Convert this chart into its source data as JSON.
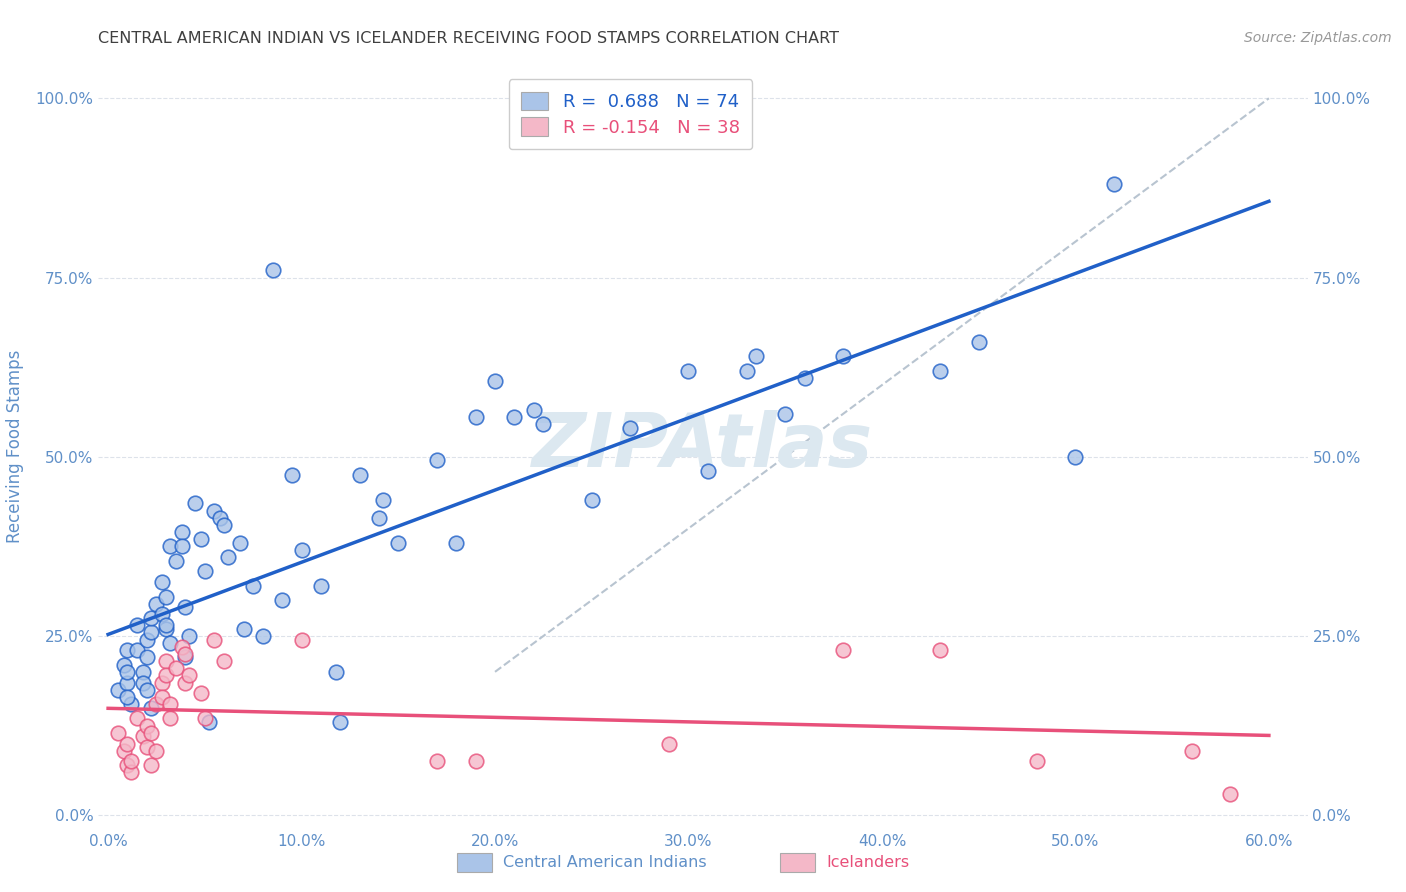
{
  "title": "CENTRAL AMERICAN INDIAN VS ICELANDER RECEIVING FOOD STAMPS CORRELATION CHART",
  "source": "Source: ZipAtlas.com",
  "ylabel": "Receiving Food Stamps",
  "xlabel_ticks": [
    "0.0%",
    "10.0%",
    "20.0%",
    "30.0%",
    "40.0%",
    "50.0%",
    "60.0%"
  ],
  "xlabel_vals": [
    0.0,
    0.1,
    0.2,
    0.3,
    0.4,
    0.5,
    0.6
  ],
  "ylabel_ticks": [
    "0.0%",
    "25.0%",
    "50.0%",
    "75.0%",
    "100.0%"
  ],
  "ylabel_vals": [
    0.0,
    0.25,
    0.5,
    0.75,
    1.0
  ],
  "xlim": [
    -0.005,
    0.62
  ],
  "ylim": [
    -0.02,
    1.05
  ],
  "legend1_label": "R =  0.688   N = 74",
  "legend2_label": "R = -0.154   N = 38",
  "legend1_color": "#aac4e8",
  "legend2_color": "#f4b8c8",
  "line1_color": "#2060c8",
  "line2_color": "#e8507a",
  "dashed_line_color": "#b8c4d0",
  "watermark": "ZIPAtlas",
  "watermark_color": "#dce8f0",
  "background_color": "#ffffff",
  "grid_color": "#dde2ea",
  "title_color": "#404040",
  "axis_label_color": "#6090c8",
  "blue_scatter": [
    [
      0.005,
      0.175
    ],
    [
      0.008,
      0.21
    ],
    [
      0.01,
      0.23
    ],
    [
      0.01,
      0.185
    ],
    [
      0.01,
      0.2
    ],
    [
      0.012,
      0.155
    ],
    [
      0.01,
      0.165
    ],
    [
      0.015,
      0.23
    ],
    [
      0.015,
      0.265
    ],
    [
      0.018,
      0.2
    ],
    [
      0.018,
      0.185
    ],
    [
      0.02,
      0.245
    ],
    [
      0.02,
      0.22
    ],
    [
      0.02,
      0.175
    ],
    [
      0.022,
      0.255
    ],
    [
      0.022,
      0.275
    ],
    [
      0.022,
      0.15
    ],
    [
      0.025,
      0.295
    ],
    [
      0.028,
      0.325
    ],
    [
      0.028,
      0.28
    ],
    [
      0.03,
      0.26
    ],
    [
      0.03,
      0.305
    ],
    [
      0.03,
      0.265
    ],
    [
      0.032,
      0.24
    ],
    [
      0.032,
      0.375
    ],
    [
      0.035,
      0.355
    ],
    [
      0.038,
      0.395
    ],
    [
      0.038,
      0.375
    ],
    [
      0.04,
      0.29
    ],
    [
      0.04,
      0.22
    ],
    [
      0.042,
      0.25
    ],
    [
      0.045,
      0.435
    ],
    [
      0.048,
      0.385
    ],
    [
      0.05,
      0.34
    ],
    [
      0.052,
      0.13
    ],
    [
      0.055,
      0.425
    ],
    [
      0.058,
      0.415
    ],
    [
      0.06,
      0.405
    ],
    [
      0.062,
      0.36
    ],
    [
      0.068,
      0.38
    ],
    [
      0.07,
      0.26
    ],
    [
      0.075,
      0.32
    ],
    [
      0.08,
      0.25
    ],
    [
      0.085,
      0.76
    ],
    [
      0.09,
      0.3
    ],
    [
      0.095,
      0.475
    ],
    [
      0.1,
      0.37
    ],
    [
      0.11,
      0.32
    ],
    [
      0.118,
      0.2
    ],
    [
      0.12,
      0.13
    ],
    [
      0.13,
      0.475
    ],
    [
      0.14,
      0.415
    ],
    [
      0.142,
      0.44
    ],
    [
      0.15,
      0.38
    ],
    [
      0.17,
      0.495
    ],
    [
      0.18,
      0.38
    ],
    [
      0.19,
      0.555
    ],
    [
      0.2,
      0.605
    ],
    [
      0.21,
      0.555
    ],
    [
      0.22,
      0.565
    ],
    [
      0.225,
      0.545
    ],
    [
      0.25,
      0.44
    ],
    [
      0.27,
      0.54
    ],
    [
      0.3,
      0.62
    ],
    [
      0.31,
      0.48
    ],
    [
      0.33,
      0.62
    ],
    [
      0.335,
      0.64
    ],
    [
      0.35,
      0.56
    ],
    [
      0.36,
      0.61
    ],
    [
      0.38,
      0.64
    ],
    [
      0.43,
      0.62
    ],
    [
      0.45,
      0.66
    ],
    [
      0.5,
      0.5
    ],
    [
      0.52,
      0.88
    ]
  ],
  "pink_scatter": [
    [
      0.005,
      0.115
    ],
    [
      0.008,
      0.09
    ],
    [
      0.01,
      0.07
    ],
    [
      0.01,
      0.1
    ],
    [
      0.012,
      0.06
    ],
    [
      0.012,
      0.075
    ],
    [
      0.015,
      0.135
    ],
    [
      0.018,
      0.11
    ],
    [
      0.02,
      0.125
    ],
    [
      0.02,
      0.095
    ],
    [
      0.022,
      0.07
    ],
    [
      0.022,
      0.115
    ],
    [
      0.025,
      0.09
    ],
    [
      0.025,
      0.155
    ],
    [
      0.028,
      0.185
    ],
    [
      0.028,
      0.165
    ],
    [
      0.03,
      0.215
    ],
    [
      0.03,
      0.195
    ],
    [
      0.032,
      0.155
    ],
    [
      0.032,
      0.135
    ],
    [
      0.035,
      0.205
    ],
    [
      0.038,
      0.235
    ],
    [
      0.04,
      0.225
    ],
    [
      0.04,
      0.185
    ],
    [
      0.042,
      0.195
    ],
    [
      0.048,
      0.17
    ],
    [
      0.05,
      0.135
    ],
    [
      0.055,
      0.245
    ],
    [
      0.06,
      0.215
    ],
    [
      0.1,
      0.245
    ],
    [
      0.17,
      0.075
    ],
    [
      0.19,
      0.075
    ],
    [
      0.29,
      0.1
    ],
    [
      0.38,
      0.23
    ],
    [
      0.43,
      0.23
    ],
    [
      0.48,
      0.075
    ],
    [
      0.56,
      0.09
    ],
    [
      0.58,
      0.03
    ]
  ]
}
